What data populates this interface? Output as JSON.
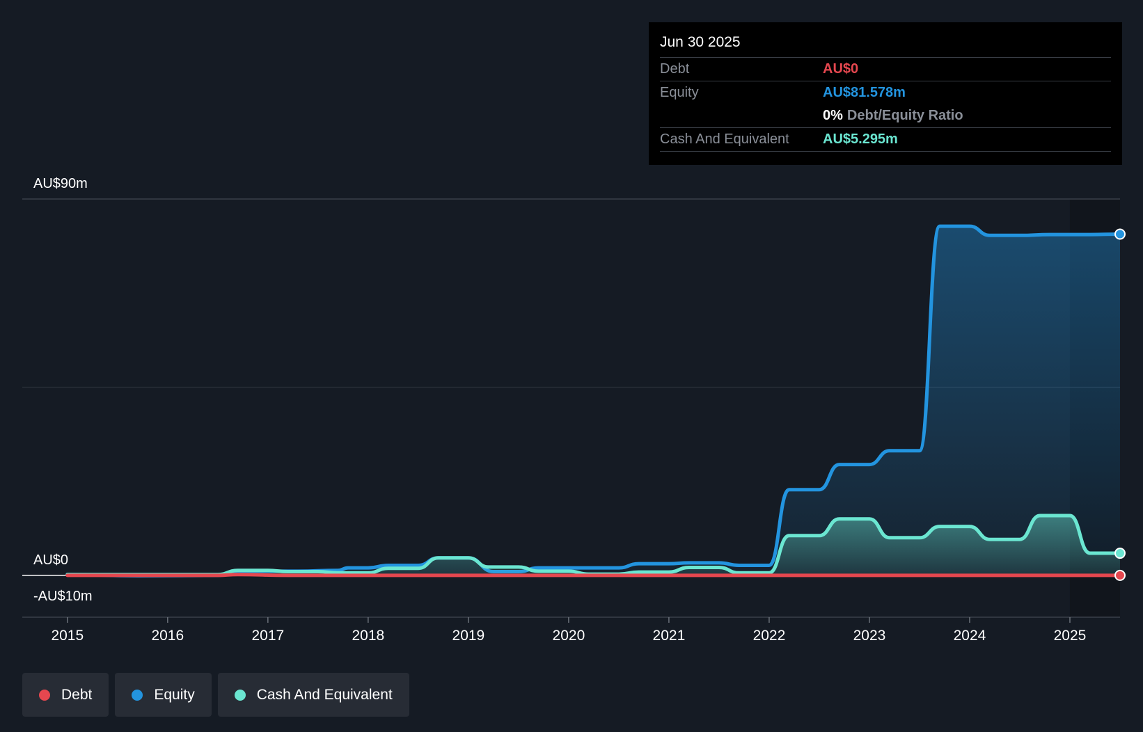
{
  "tooltip": {
    "date": "Jun 30 2025",
    "debt_label": "Debt",
    "debt_value": "AU$0",
    "equity_label": "Equity",
    "equity_value": "AU$81.578m",
    "ratio_pct": "0%",
    "ratio_label": "Debt/Equity Ratio",
    "cash_label": "Cash And Equivalent",
    "cash_value": "AU$5.295m"
  },
  "legend": [
    {
      "label": "Debt",
      "color": "#e5474f"
    },
    {
      "label": "Equity",
      "color": "#2394df"
    },
    {
      "label": "Cash And Equivalent",
      "color": "#6be6d1"
    }
  ],
  "colors": {
    "debt": "#e5474f",
    "equity": "#2394df",
    "cash": "#6be6d1",
    "background": "#151b24"
  },
  "chart_data": {
    "type": "area",
    "title": "",
    "xlabel": "",
    "ylabel": "",
    "y_tick_labels": [
      "AU$90m",
      "AU$0",
      "-AU$10m"
    ],
    "y_ticks": [
      90,
      0,
      -10
    ],
    "ylim": [
      -10,
      90
    ],
    "xlim": [
      2014.55,
      2025.5
    ],
    "x_tick_labels": [
      "2015",
      "2016",
      "2017",
      "2018",
      "2019",
      "2020",
      "2021",
      "2022",
      "2023",
      "2024",
      "2025"
    ],
    "x_ticks": [
      2015,
      2016,
      2017,
      2018,
      2019,
      2020,
      2021,
      2022,
      2023,
      2024,
      2025
    ],
    "grid": true,
    "legend_position": "bottom-left",
    "series": [
      {
        "name": "Debt",
        "x": [
          2015.0,
          2016.5,
          2016.7,
          2017.2,
          2025.5
        ],
        "values": [
          0,
          0,
          0.2,
          0,
          0
        ]
      },
      {
        "name": "Equity",
        "x": [
          2015.0,
          2015.7,
          2016.5,
          2016.7,
          2017.3,
          2017.7,
          2017.8,
          2018.0,
          2018.2,
          2018.5,
          2018.7,
          2019.0,
          2019.25,
          2019.5,
          2019.7,
          2020.5,
          2020.7,
          2021.0,
          2021.2,
          2021.5,
          2021.7,
          2022.0,
          2022.2,
          2022.5,
          2022.7,
          2023.0,
          2023.2,
          2023.5,
          2023.7,
          2024.0,
          2024.2,
          2024.5,
          2024.8,
          2025.2,
          2025.5
        ],
        "values": [
          0.2,
          -0.1,
          0,
          1.0,
          1.0,
          1.2,
          1.8,
          1.8,
          2.4,
          2.4,
          4.2,
          4.2,
          0.9,
          0.9,
          1.8,
          1.8,
          2.8,
          2.8,
          3.0,
          3.0,
          2.4,
          2.4,
          20.5,
          20.5,
          26.5,
          26.5,
          29.8,
          29.8,
          83.5,
          83.5,
          81.3,
          81.3,
          81.5,
          81.5,
          81.6
        ]
      },
      {
        "name": "Cash And Equivalent",
        "x": [
          2015.0,
          2016.5,
          2016.7,
          2017.0,
          2017.2,
          2017.5,
          2017.7,
          2018.0,
          2018.2,
          2018.5,
          2018.7,
          2019.0,
          2019.2,
          2019.5,
          2019.7,
          2020.0,
          2020.2,
          2020.5,
          2020.7,
          2021.0,
          2021.2,
          2021.5,
          2021.7,
          2022.0,
          2022.2,
          2022.5,
          2022.7,
          2023.0,
          2023.2,
          2023.5,
          2023.7,
          2024.0,
          2024.2,
          2024.5,
          2024.7,
          2025.0,
          2025.2,
          2025.5
        ],
        "values": [
          0.2,
          0.2,
          1.2,
          1.2,
          0.9,
          0.9,
          0.6,
          0.6,
          1.7,
          1.7,
          4.2,
          4.2,
          2.0,
          2.0,
          1.0,
          1.0,
          0.3,
          0.3,
          0.8,
          0.8,
          1.9,
          1.9,
          0.6,
          0.6,
          9.5,
          9.5,
          13.5,
          13.5,
          9.0,
          9.0,
          11.7,
          11.7,
          8.6,
          8.6,
          14.3,
          14.3,
          5.3,
          5.3
        ]
      }
    ]
  }
}
